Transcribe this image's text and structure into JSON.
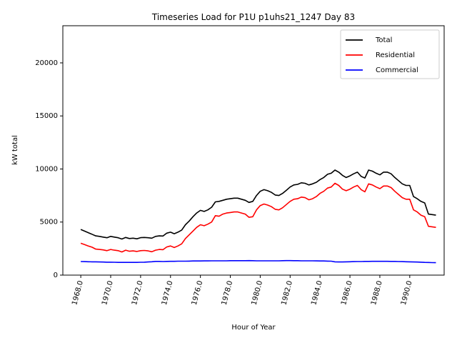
{
  "chart_data": {
    "type": "line",
    "title": "Timeseries Load for P1U p1uhs21_1247  Day 83",
    "xlabel": "Hour of Year",
    "ylabel": "kW total",
    "xlim": [
      1966.8,
      1992.3
    ],
    "ylim": [
      0,
      23500
    ],
    "xticks": [
      1968,
      1970,
      1972,
      1974,
      1976,
      1978,
      1980,
      1982,
      1984,
      1986,
      1988,
      1990
    ],
    "xtick_labels": [
      "1968.0",
      "1970.0",
      "1972.0",
      "1974.0",
      "1976.0",
      "1978.0",
      "1980.0",
      "1982.0",
      "1984.0",
      "1986.0",
      "1988.0",
      "1990.0"
    ],
    "yticks": [
      0,
      5000,
      10000,
      15000,
      20000
    ],
    "ytick_labels": [
      "0",
      "5000",
      "10000",
      "15000",
      "20000"
    ],
    "grid": false,
    "legend_position": "top-right",
    "x": [
      1968.0,
      1968.25,
      1968.5,
      1968.75,
      1969.0,
      1969.25,
      1969.5,
      1969.75,
      1970.0,
      1970.25,
      1970.5,
      1970.75,
      1971.0,
      1971.25,
      1971.5,
      1971.75,
      1972.0,
      1972.25,
      1972.5,
      1972.75,
      1973.0,
      1973.25,
      1973.5,
      1973.75,
      1974.0,
      1974.25,
      1974.5,
      1974.75,
      1975.0,
      1975.25,
      1975.5,
      1975.75,
      1976.0,
      1976.25,
      1976.5,
      1976.75,
      1977.0,
      1977.25,
      1977.5,
      1977.75,
      1978.0,
      1978.25,
      1978.5,
      1978.75,
      1979.0,
      1979.25,
      1979.5,
      1979.75,
      1980.0,
      1980.25,
      1980.5,
      1980.75,
      1981.0,
      1981.25,
      1981.5,
      1981.75,
      1982.0,
      1982.25,
      1982.5,
      1982.75,
      1983.0,
      1983.25,
      1983.5,
      1983.75,
      1984.0,
      1984.25,
      1984.5,
      1984.75,
      1985.0,
      1985.25,
      1985.5,
      1985.75,
      1986.0,
      1986.25,
      1986.5,
      1986.75,
      1987.0,
      1987.25,
      1987.5,
      1987.75,
      1988.0,
      1988.25,
      1988.5,
      1988.75,
      1989.0,
      1989.25,
      1989.5,
      1989.75,
      1990.0,
      1990.25,
      1990.5,
      1990.75,
      1991.0,
      1991.25,
      1991.5,
      1991.75
    ],
    "series": [
      {
        "name": "Total",
        "color": "#000000",
        "values": [
          4300,
          4150,
          4000,
          3850,
          3700,
          3650,
          3580,
          3520,
          3650,
          3580,
          3520,
          3400,
          3550,
          3450,
          3480,
          3420,
          3530,
          3550,
          3520,
          3480,
          3650,
          3700,
          3680,
          3950,
          4050,
          3900,
          4050,
          4250,
          4750,
          5100,
          5500,
          5850,
          6100,
          6000,
          6150,
          6400,
          6900,
          6950,
          7050,
          7150,
          7200,
          7250,
          7250,
          7150,
          7050,
          6850,
          6950,
          7500,
          7900,
          8050,
          7950,
          7800,
          7550,
          7500,
          7700,
          8000,
          8300,
          8500,
          8550,
          8700,
          8650,
          8500,
          8600,
          8750,
          9000,
          9200,
          9500,
          9600,
          9900,
          9700,
          9400,
          9200,
          9350,
          9550,
          9700,
          9300,
          9150,
          9900,
          9800,
          9600,
          9450,
          9700,
          9700,
          9550,
          9200,
          8900,
          8600,
          8450,
          8450,
          7400,
          7200,
          6950,
          6800,
          5750,
          5700,
          5650
        ]
      },
      {
        "name": "Residential",
        "color": "#ff0000",
        "values": [
          3000,
          2880,
          2750,
          2630,
          2450,
          2420,
          2380,
          2300,
          2420,
          2350,
          2300,
          2180,
          2350,
          2250,
          2280,
          2230,
          2300,
          2320,
          2280,
          2200,
          2350,
          2420,
          2400,
          2650,
          2750,
          2600,
          2750,
          2950,
          3450,
          3800,
          4150,
          4500,
          4750,
          4650,
          4800,
          5000,
          5600,
          5550,
          5750,
          5850,
          5900,
          5950,
          5950,
          5850,
          5750,
          5450,
          5500,
          6150,
          6550,
          6700,
          6600,
          6450,
          6200,
          6150,
          6350,
          6650,
          6950,
          7150,
          7200,
          7350,
          7300,
          7100,
          7200,
          7400,
          7700,
          7900,
          8200,
          8300,
          8650,
          8450,
          8100,
          7950,
          8100,
          8300,
          8450,
          8050,
          7850,
          8600,
          8500,
          8300,
          8150,
          8400,
          8400,
          8250,
          7900,
          7600,
          7300,
          7150,
          7150,
          6150,
          5950,
          5650,
          5500,
          4600,
          4550,
          4500
        ]
      },
      {
        "name": "Commercial",
        "color": "#0000ff",
        "values": [
          1280,
          1270,
          1260,
          1250,
          1250,
          1240,
          1230,
          1220,
          1220,
          1210,
          1200,
          1200,
          1200,
          1200,
          1200,
          1200,
          1210,
          1220,
          1240,
          1260,
          1290,
          1290,
          1280,
          1290,
          1300,
          1300,
          1310,
          1310,
          1310,
          1320,
          1330,
          1330,
          1330,
          1340,
          1340,
          1350,
          1350,
          1350,
          1350,
          1350,
          1360,
          1360,
          1360,
          1360,
          1360,
          1370,
          1360,
          1350,
          1350,
          1350,
          1350,
          1350,
          1350,
          1350,
          1360,
          1370,
          1370,
          1360,
          1360,
          1350,
          1350,
          1350,
          1350,
          1340,
          1330,
          1330,
          1320,
          1310,
          1250,
          1240,
          1240,
          1250,
          1260,
          1270,
          1280,
          1280,
          1290,
          1290,
          1300,
          1300,
          1300,
          1300,
          1300,
          1290,
          1290,
          1280,
          1270,
          1260,
          1250,
          1240,
          1230,
          1220,
          1200,
          1190,
          1180,
          1170
        ]
      }
    ]
  }
}
